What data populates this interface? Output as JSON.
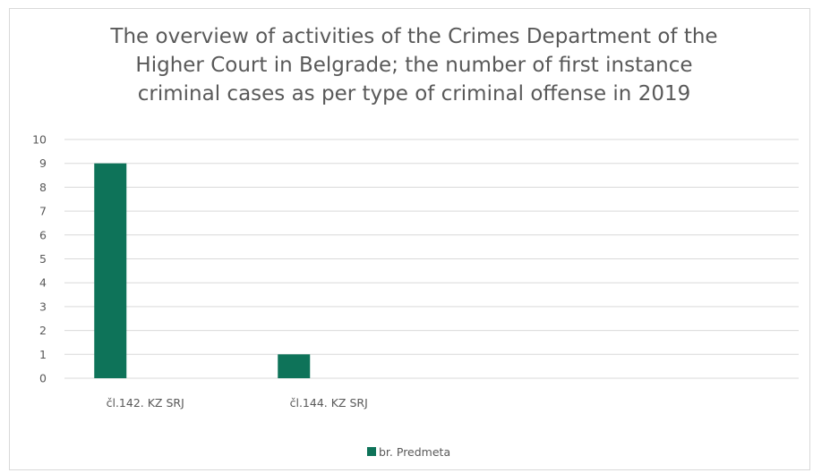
{
  "chart_data": {
    "type": "bar",
    "title_lines": [
      "The overview of activities of the Crimes Department of the",
      "Higher Court in Belgrade; the number of first instance",
      "criminal cases as per type of criminal offense in 2019"
    ],
    "categories": [
      "čl.142. KZ SRJ",
      "čl.144. KZ SRJ",
      "",
      ""
    ],
    "series": [
      {
        "name": "br. Predmeta",
        "values": [
          9,
          1,
          null,
          null
        ],
        "color": "#0e7359"
      }
    ],
    "ylim": [
      0,
      10
    ],
    "yticks": [
      0,
      1,
      2,
      3,
      4,
      5,
      6,
      7,
      8,
      9,
      10
    ],
    "grid": true,
    "legend_position": "bottom",
    "colors": {
      "gridline": "#d9d9d9",
      "text": "#595959",
      "border": "#d9d9d9"
    }
  }
}
